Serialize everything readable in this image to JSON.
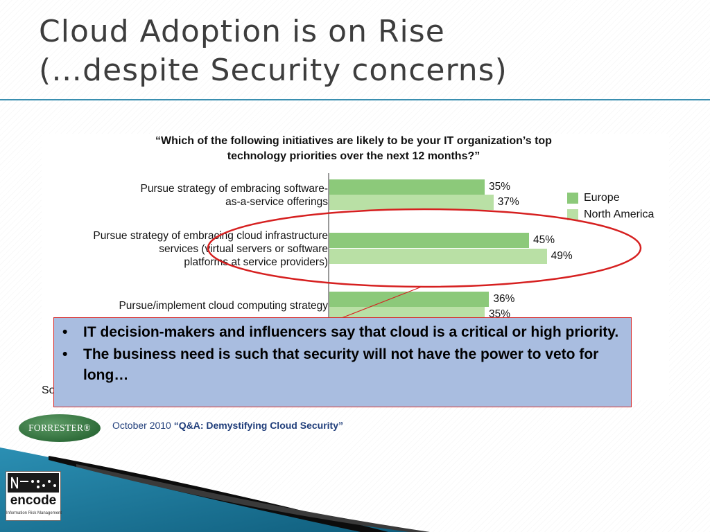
{
  "slide": {
    "title_line1": "Cloud Adoption is on Rise",
    "title_line2": "(…despite Security concerns)"
  },
  "chart_data": {
    "type": "bar",
    "orientation": "horizontal",
    "title": "“Which of the following initiatives are likely to be your IT organization’s top technology priorities over the next 12 months?”",
    "categories": [
      [
        "Pursue strategy of embracing software-",
        "as-a-service offerings"
      ],
      [
        "Pursue strategy of embracing cloud infrastructure",
        "services (virtual servers or software",
        "platforms at service providers)"
      ],
      [
        "Pursue/implement cloud computing strategy"
      ]
    ],
    "series": [
      {
        "name": "Europe",
        "color": "#8cc97a",
        "values": [
          35,
          45,
          36
        ],
        "labels": [
          "35%",
          "45%",
          "36%"
        ]
      },
      {
        "name": "North America",
        "color": "#b9e0a5",
        "values": [
          37,
          49,
          35
        ],
        "labels": [
          "37%",
          "49%",
          "35%"
        ]
      }
    ],
    "xlim": [
      0,
      60
    ],
    "legend_position": "right",
    "grid": false,
    "highlight_color": "#d62020",
    "source_stub": "So"
  },
  "callout": {
    "bullets": [
      "IT decision-makers and influencers say that cloud is a critical or high priority.",
      "The business need is such that security will not have the power to veto for long…"
    ]
  },
  "footer": {
    "logo_text": "FORRESTER®",
    "citation_date": "October 2010",
    "citation_title": "“Q&A: Demystifying Cloud Security”"
  },
  "encode_logo": {
    "word": "encode",
    "tagline": "Information Risk Management"
  }
}
